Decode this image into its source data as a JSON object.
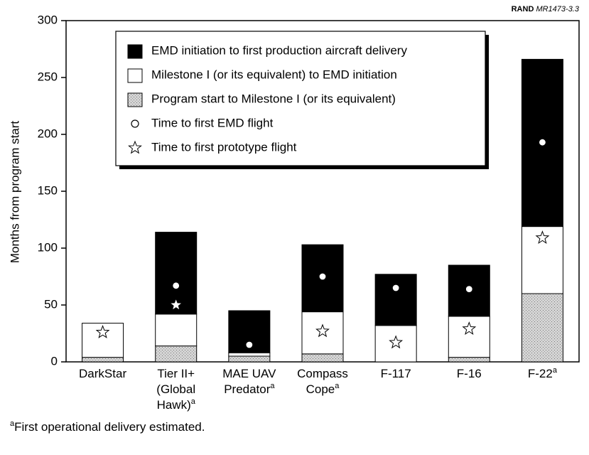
{
  "chart_data": {
    "type": "stacked_bar",
    "source": {
      "org": "RAND",
      "id": "MR1473-3.3"
    },
    "y_label": "Months from program start",
    "categories": [
      [
        "DarkStar"
      ],
      [
        "Tier II+",
        "(Global",
        "Hawk)"
      ],
      [
        "MAE UAV",
        "Predator"
      ],
      [
        "Compass",
        "Cope"
      ],
      [
        "F-117"
      ],
      [
        "F-16"
      ],
      [
        "F-22"
      ]
    ],
    "category_notes": [
      null,
      "a",
      "a",
      "a",
      null,
      null,
      "a"
    ],
    "series": [
      {
        "name": "EMD initiation to first production aircraft delivery",
        "color": "#000000",
        "values": [
          0,
          72,
          37,
          59,
          45,
          45,
          147
        ]
      },
      {
        "name": "Milestone I (or its equivalent) to EMD initiation",
        "color": "#ffffff",
        "values": [
          30,
          28,
          3,
          37,
          32,
          36,
          59
        ]
      },
      {
        "name": "Program start to Milestone I (or its equivalent)",
        "color": "#cfcfcf",
        "values": [
          4,
          14,
          5,
          7,
          0,
          4,
          60
        ]
      }
    ],
    "markers": [
      {
        "name": "Time to first EMD flight",
        "symbol": "circle",
        "values": [
          null,
          67,
          15,
          75,
          65,
          64,
          193
        ]
      },
      {
        "name": "Time to first prototype flight",
        "symbol": "star",
        "values": [
          26,
          50,
          null,
          27,
          17,
          29,
          109
        ]
      }
    ],
    "ylim": [
      0,
      300
    ],
    "yticks": [
      0,
      50,
      100,
      150,
      200,
      250,
      300
    ],
    "footnote": {
      "mark": "a",
      "text": "First operational delivery estimated."
    }
  }
}
